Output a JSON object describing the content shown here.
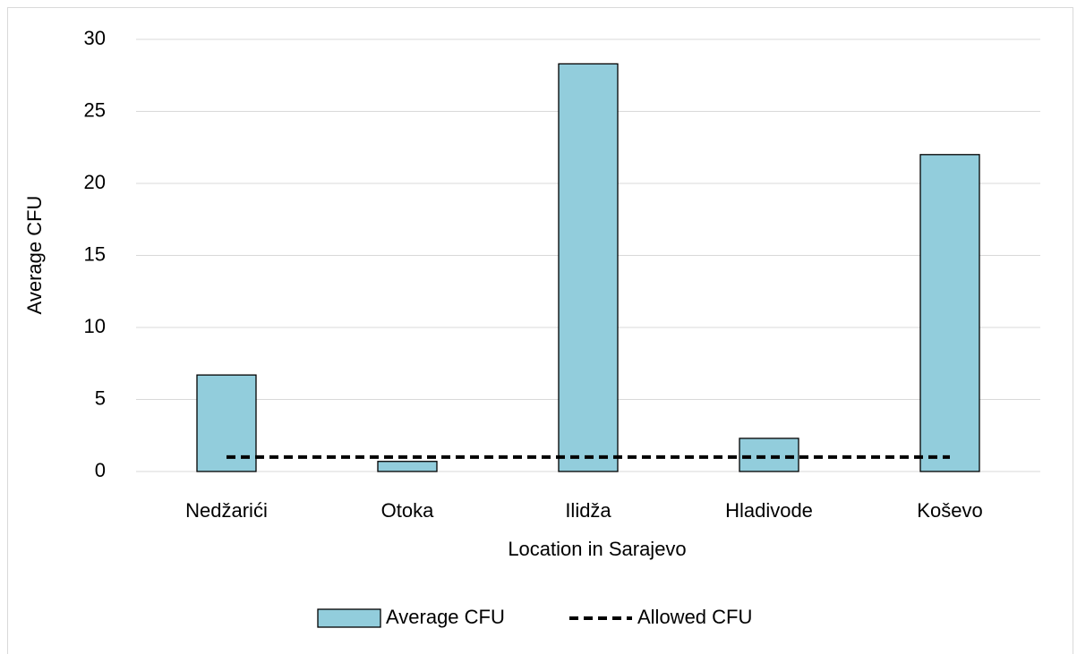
{
  "chart_data": {
    "type": "bar",
    "x_label": "Location in Sarajevo",
    "y_label": "Average CFU",
    "categories": [
      "Nedžarići",
      "Otoka",
      "Ilidža",
      "Hladivode",
      "Koševo"
    ],
    "series": [
      {
        "name": "Average CFU",
        "type": "bar",
        "color": "#92cddc",
        "values": [
          6.7,
          0.7,
          28.3,
          2.3,
          22
        ]
      },
      {
        "name": "Allowed CFU",
        "type": "line",
        "color": "#000000",
        "dashed": true,
        "values": [
          1,
          1,
          1,
          1,
          1
        ]
      }
    ],
    "ylim": [
      0,
      30
    ],
    "yticks": [
      0,
      5,
      10,
      15,
      20,
      25,
      30
    ],
    "grid": true,
    "legend": "bottom"
  }
}
